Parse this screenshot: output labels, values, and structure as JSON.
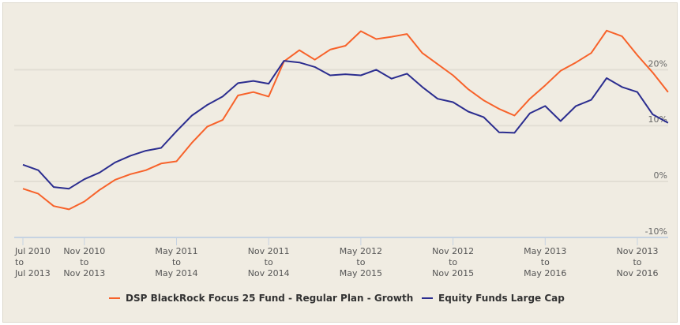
{
  "chart_data": {
    "type": "line",
    "title": "",
    "xlabel": "",
    "ylabel": "",
    "ylim": [
      -10,
      30
    ],
    "grid": true,
    "legend": "bottom",
    "y_ticks": [
      "20%",
      "10%",
      "0%",
      "-10%"
    ],
    "y_tick_values": [
      20,
      10,
      0,
      -10
    ],
    "x_ticks": [
      {
        "at": "2010-07",
        "line1": "Jul 2010",
        "line2": "to",
        "line3": "Jul 2013"
      },
      {
        "at": "2010-11",
        "line1": "Nov 2010",
        "line2": "to",
        "line3": "Nov 2013"
      },
      {
        "at": "2011-05",
        "line1": "May 2011",
        "line2": "to",
        "line3": "May 2014"
      },
      {
        "at": "2011-11",
        "line1": "Nov 2011",
        "line2": "to",
        "line3": "Nov 2014"
      },
      {
        "at": "2012-05",
        "line1": "May 2012",
        "line2": "to",
        "line3": "May 2015"
      },
      {
        "at": "2012-11",
        "line1": "Nov 2012",
        "line2": "to",
        "line3": "Nov 2015"
      },
      {
        "at": "2013-05",
        "line1": "May 2013",
        "line2": "to",
        "line3": "May 2016"
      },
      {
        "at": "2013-11",
        "line1": "Nov 2013",
        "line2": "to",
        "line3": "Nov 2016"
      }
    ],
    "x": [
      "2010-07",
      "2010-08",
      "2010-09",
      "2010-10",
      "2010-11",
      "2010-12",
      "2011-01",
      "2011-02",
      "2011-03",
      "2011-04",
      "2011-05",
      "2011-06",
      "2011-07",
      "2011-08",
      "2011-09",
      "2011-10",
      "2011-11",
      "2011-12",
      "2012-01",
      "2012-02",
      "2012-03",
      "2012-04",
      "2012-05",
      "2012-06",
      "2012-07",
      "2012-08",
      "2012-09",
      "2012-10",
      "2012-11",
      "2012-12",
      "2013-01",
      "2013-02",
      "2013-03",
      "2013-04",
      "2013-05",
      "2013-06",
      "2013-07",
      "2013-08",
      "2013-09",
      "2013-10",
      "2013-11",
      "2013-12",
      "2014-01"
    ],
    "series": [
      {
        "name": "DSP BlackRock Focus 25 Fund - Regular Plan - Growth",
        "color": "#f7622a",
        "values": [
          -1.3,
          -2.2,
          -4.4,
          -5,
          -3.6,
          -1.5,
          0.3,
          1.3,
          2,
          3.2,
          3.6,
          6.9,
          9.8,
          11,
          15.4,
          16,
          15.2,
          21.5,
          23.5,
          21.8,
          23.6,
          24.3,
          26.9,
          25.5,
          25.9,
          26.4,
          23,
          21,
          19,
          16.5,
          14.5,
          13,
          11.8,
          14.8,
          17.2,
          19.8,
          21.3,
          23,
          27,
          26,
          22.6,
          19.5,
          16
        ]
      },
      {
        "name": "Equity Funds Large Cap",
        "color": "#2b2d8f",
        "values": [
          3,
          2,
          -1,
          -1.3,
          0.4,
          1.6,
          3.4,
          4.6,
          5.5,
          6,
          9,
          11.8,
          13.7,
          15.2,
          17.6,
          18,
          17.5,
          21.6,
          21.3,
          20.5,
          19,
          19.2,
          19,
          20,
          18.4,
          19.3,
          16.9,
          14.8,
          14.2,
          12.5,
          11.5,
          8.8,
          8.7,
          12.2,
          13.5,
          10.8,
          13.5,
          14.6,
          18.5,
          16.9,
          16,
          12,
          10.5
        ]
      }
    ]
  }
}
